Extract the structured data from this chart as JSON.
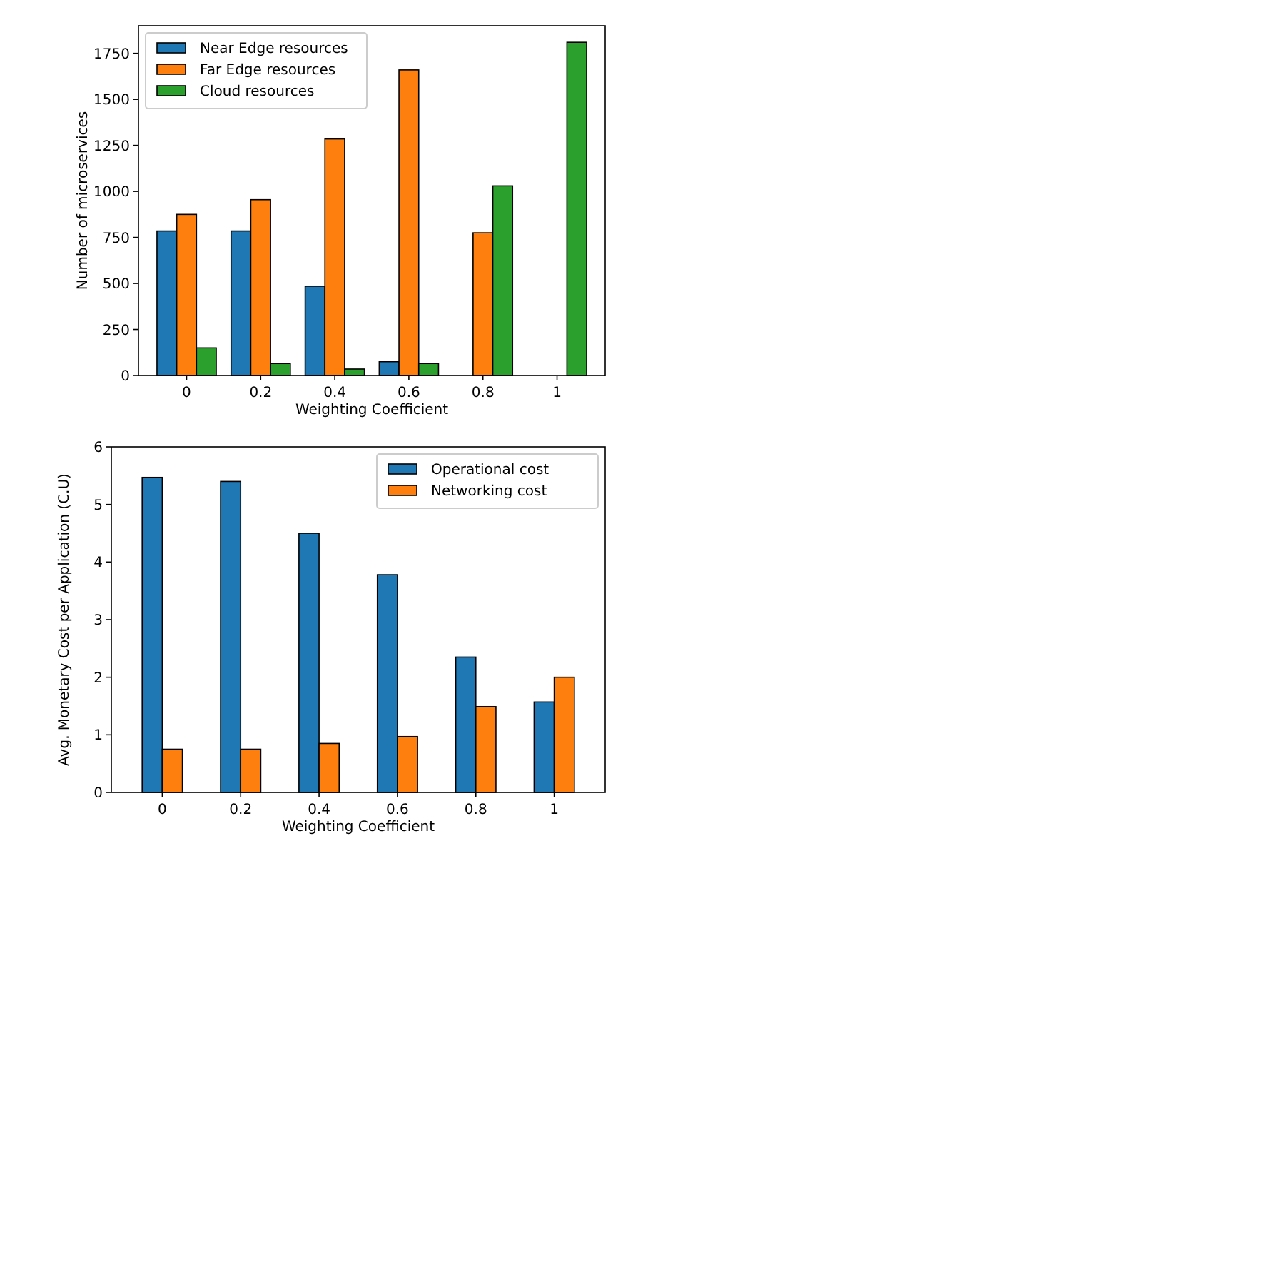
{
  "chart_data": [
    {
      "type": "bar",
      "xlabel": "Weighting Coefficient",
      "ylabel": "Number of microservices",
      "categories": [
        "0",
        "0.2",
        "0.4",
        "0.6",
        "0.8",
        "1"
      ],
      "ylim": [
        0,
        1900
      ],
      "yticks": [
        0,
        250,
        500,
        750,
        1000,
        1250,
        1500,
        1750
      ],
      "legend": "top left",
      "series": [
        {
          "name": "Near Edge resources",
          "color": "#1f77b4",
          "values": [
            785,
            785,
            485,
            75,
            0,
            0
          ]
        },
        {
          "name": "Far Edge resources",
          "color": "#ff7f0e",
          "values": [
            875,
            955,
            1285,
            1660,
            775,
            0
          ]
        },
        {
          "name": "Cloud resources",
          "color": "#2ca02c",
          "values": [
            150,
            65,
            35,
            65,
            1030,
            1810
          ]
        }
      ]
    },
    {
      "type": "bar",
      "xlabel": "Weighting Coefficient",
      "ylabel": "Avg. Monetary Cost per Application (C.U)",
      "categories": [
        "0",
        "0.2",
        "0.4",
        "0.6",
        "0.8",
        "1"
      ],
      "ylim": [
        0,
        6
      ],
      "yticks": [
        0,
        1,
        2,
        3,
        4,
        5,
        6
      ],
      "legend": "top right",
      "series": [
        {
          "name": "Operational cost",
          "color": "#1f77b4",
          "values": [
            5.47,
            5.4,
            4.5,
            3.78,
            2.35,
            1.57
          ]
        },
        {
          "name": "Networking cost",
          "color": "#ff7f0e",
          "values": [
            0.75,
            0.75,
            0.85,
            0.97,
            1.49,
            2.0
          ]
        }
      ]
    }
  ]
}
